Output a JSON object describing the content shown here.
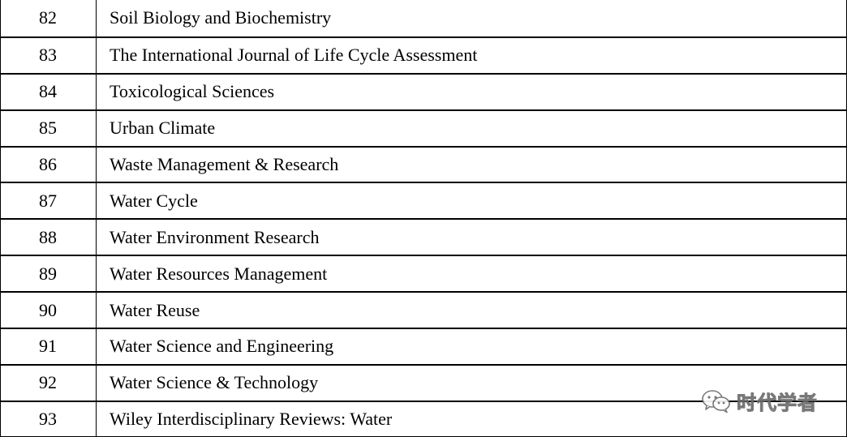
{
  "rows": [
    {
      "num": "82",
      "title": "Soil Biology and Biochemistry"
    },
    {
      "num": "83",
      "title": "The International Journal of Life Cycle Assessment"
    },
    {
      "num": "84",
      "title": "Toxicological Sciences"
    },
    {
      "num": "85",
      "title": "Urban Climate"
    },
    {
      "num": "86",
      "title": "Waste Management & Research"
    },
    {
      "num": "87",
      "title": "Water Cycle"
    },
    {
      "num": "88",
      "title": "Water Environment Research"
    },
    {
      "num": "89",
      "title": "Water Resources Management"
    },
    {
      "num": "90",
      "title": "Water Reuse"
    },
    {
      "num": "91",
      "title": "Water Science and Engineering"
    },
    {
      "num": "92",
      "title": "Water Science & Technology"
    },
    {
      "num": "93",
      "title": "Wiley Interdisciplinary Reviews: Water"
    }
  ],
  "watermark": {
    "icon": "wechat-icon",
    "text": "时代学者"
  }
}
